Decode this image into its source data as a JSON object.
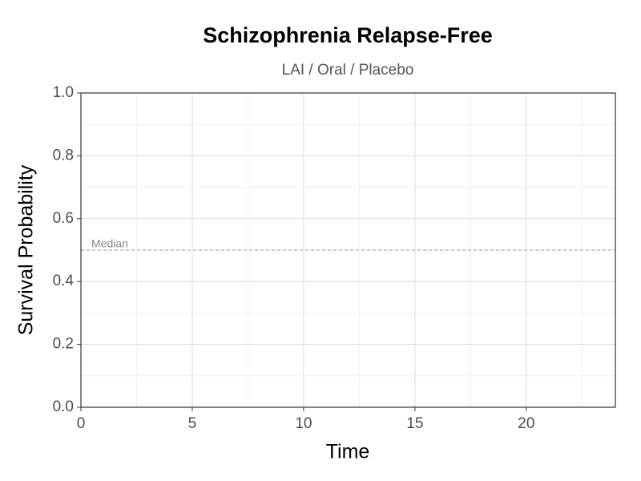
{
  "chart_data": {
    "type": "line",
    "title": "Schizophrenia Relapse-Free",
    "subtitle": "LAI / Oral / Placebo",
    "x_label": "Time",
    "y_label": "Survival Probability",
    "series": [],
    "xlim": [
      0,
      24
    ],
    "xticks": [
      0,
      5,
      10,
      15,
      20
    ],
    "ylim": [
      0,
      1
    ],
    "yticks": [
      {
        "value": 0,
        "label": "0.0"
      },
      {
        "value": 0.2,
        "label": "0.2"
      },
      {
        "value": 0.4,
        "label": "0.4"
      },
      {
        "value": 0.6,
        "label": "0.6"
      },
      {
        "value": 0.8,
        "label": "0.8"
      },
      {
        "value": 1,
        "label": "1.0"
      }
    ],
    "grid": true,
    "annotations": [
      {
        "text": "Median",
        "y": 0.5
      }
    ]
  }
}
